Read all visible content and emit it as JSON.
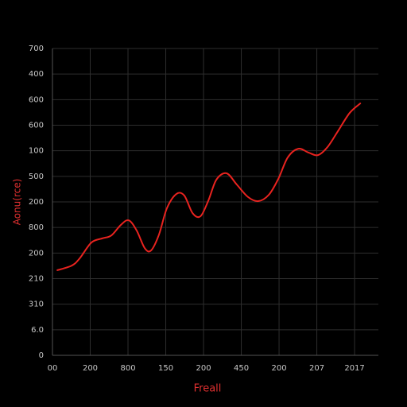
{
  "chart_data": {
    "type": "line",
    "xlabel": "Freall",
    "ylabel": "Aonu(rce)",
    "xlim": [
      0,
      8.63
    ],
    "ylim": [
      0,
      12
    ],
    "xticks": [
      {
        "value": 0,
        "label": "00"
      },
      {
        "value": 1,
        "label": "200"
      },
      {
        "value": 2,
        "label": "800"
      },
      {
        "value": 3,
        "label": "150"
      },
      {
        "value": 4,
        "label": "200"
      },
      {
        "value": 5,
        "label": "450"
      },
      {
        "value": 6,
        "label": "200"
      },
      {
        "value": 7,
        "label": "207"
      },
      {
        "value": 8,
        "label": "2017"
      }
    ],
    "yticks": [
      {
        "value": 0,
        "label": "0"
      },
      {
        "value": 1,
        "label": "6.0"
      },
      {
        "value": 2,
        "label": "310"
      },
      {
        "value": 3,
        "label": "210"
      },
      {
        "value": 4,
        "label": "200"
      },
      {
        "value": 5,
        "label": "800"
      },
      {
        "value": 6,
        "label": "200"
      },
      {
        "value": 7,
        "label": "500"
      },
      {
        "value": 8,
        "label": "100"
      },
      {
        "value": 9,
        "label": "600"
      },
      {
        "value": 10,
        "label": "600"
      },
      {
        "value": 11,
        "label": "400"
      },
      {
        "value": 12,
        "label": "700"
      }
    ],
    "grid": true,
    "series": [
      {
        "color": "#e8231f",
        "x": [
          0.13,
          0.51,
          0.72,
          1.03,
          1.31,
          1.56,
          1.81,
          2.02,
          2.23,
          2.44,
          2.61,
          2.82,
          3.03,
          3.28,
          3.49,
          3.71,
          3.92,
          4.13,
          4.34,
          4.61,
          4.88,
          5.18,
          5.45,
          5.73,
          5.98,
          6.23,
          6.51,
          6.78,
          7.03,
          7.28,
          7.56,
          7.87,
          8.15
        ],
        "values": [
          3.33,
          3.51,
          3.79,
          4.41,
          4.57,
          4.69,
          5.1,
          5.28,
          4.88,
          4.2,
          4.1,
          4.72,
          5.75,
          6.31,
          6.25,
          5.56,
          5.44,
          6.06,
          6.87,
          7.12,
          6.68,
          6.19,
          6.03,
          6.28,
          6.9,
          7.74,
          8.08,
          7.93,
          7.83,
          8.14,
          8.77,
          9.48,
          9.85
        ]
      }
    ]
  }
}
